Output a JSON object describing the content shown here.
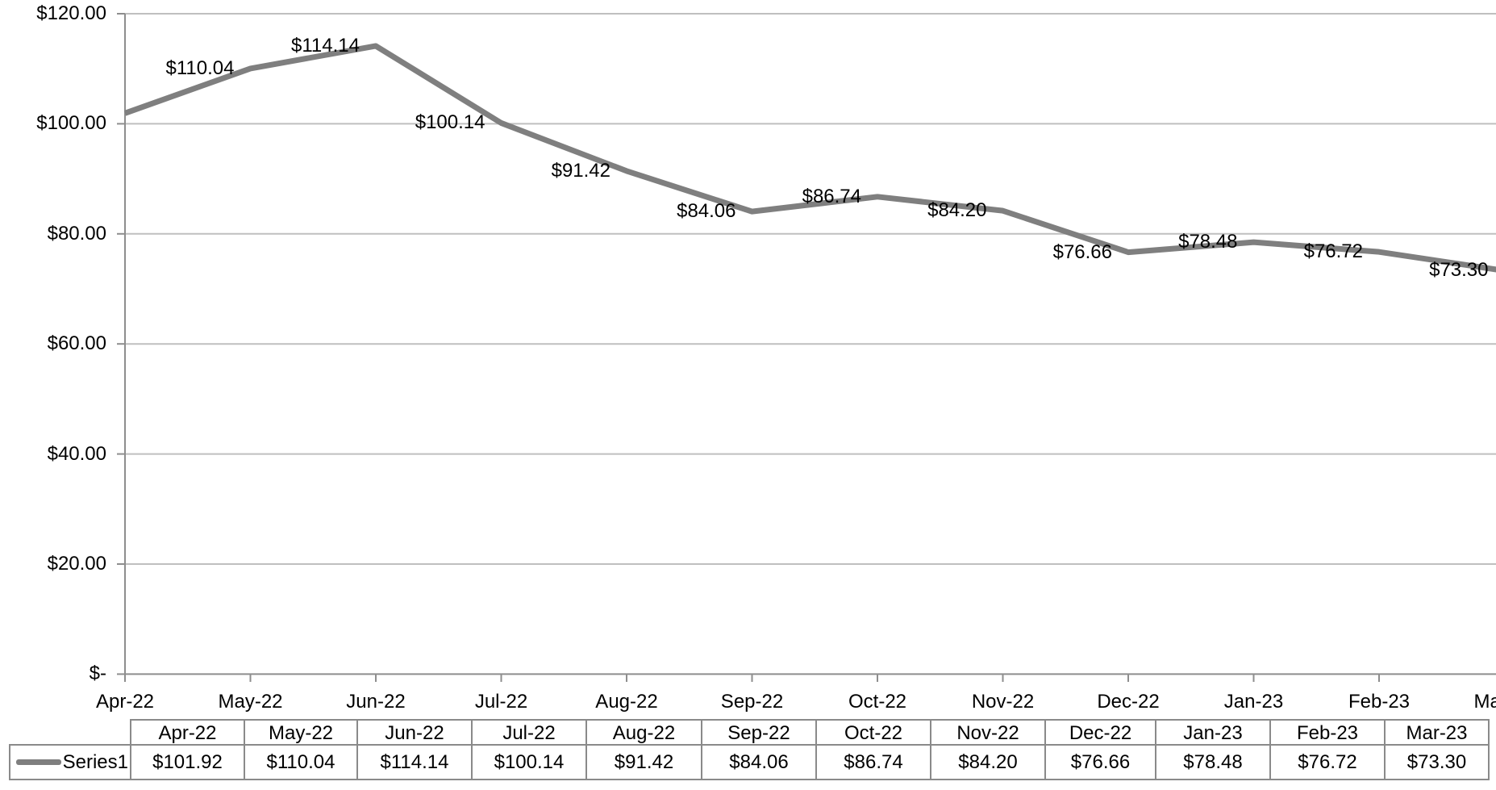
{
  "chart_data": {
    "type": "line",
    "title": "",
    "categories": [
      "Apr-22",
      "May-22",
      "Jun-22",
      "Jul-22",
      "Aug-22",
      "Sep-22",
      "Oct-22",
      "Nov-22",
      "Dec-22",
      "Jan-23",
      "Feb-23",
      "Mar-23"
    ],
    "series": [
      {
        "name": "Series1",
        "values": [
          101.92,
          110.04,
          114.14,
          100.14,
          91.42,
          84.06,
          86.74,
          84.2,
          76.66,
          78.48,
          76.72,
          73.3
        ]
      }
    ],
    "data_labels": [
      "",
      "$110.04",
      "$114.14",
      "$100.14",
      "$91.42",
      "$84.06",
      "$86.74",
      "$84.20",
      "$76.66",
      "$78.48",
      "$76.72",
      "$73.30"
    ],
    "y_axis": {
      "min": 0,
      "max": 120,
      "ticks": [
        {
          "value": 0,
          "label": "$-"
        },
        {
          "value": 20,
          "label": "$20.00"
        },
        {
          "value": 40,
          "label": "$40.00"
        },
        {
          "value": 60,
          "label": "$60.00"
        },
        {
          "value": 80,
          "label": "$80.00"
        },
        {
          "value": 100,
          "label": "$100.00"
        },
        {
          "value": 120,
          "label": "$120.00"
        }
      ]
    },
    "grid": true,
    "legend_position": "table-left"
  },
  "table": {
    "legend_label": "Series1",
    "headers": [
      "Apr-22",
      "May-22",
      "Jun-22",
      "Jul-22",
      "Aug-22",
      "Sep-22",
      "Oct-22",
      "Nov-22",
      "Dec-22",
      "Jan-23",
      "Feb-23",
      "Mar-23"
    ],
    "values": [
      "$101.92",
      "$110.04",
      "$114.14",
      "$100.14",
      "$91.42",
      "$84.06",
      "$86.74",
      "$84.20",
      "$76.66",
      "$78.48",
      "$76.72",
      "$73.30"
    ]
  },
  "colors": {
    "series": "#7f7f7f",
    "gridline": "#bfbfbf",
    "axis": "#8e8e8e",
    "tick": "#8e8e8e",
    "table_border": "#8a8a8a",
    "text": "#000000"
  }
}
